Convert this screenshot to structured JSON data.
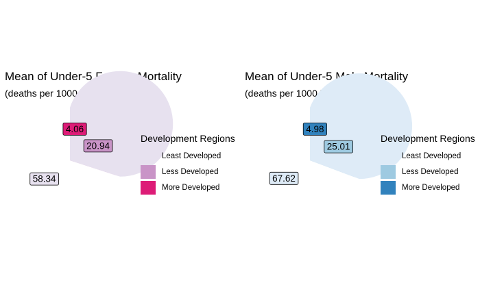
{
  "chart_data": [
    {
      "type": "pie",
      "title": "Mean of Under-5 Female Mortality",
      "subtitle": "(deaths per 1000 live births)",
      "legend_title": "Development Regions",
      "legend_position": "right",
      "categories": [
        "Least Developed",
        "Less Developed",
        "More Developed"
      ],
      "values": [
        58.34,
        20.94,
        4.06
      ],
      "labels": [
        "58.34",
        "20.94",
        "4.06"
      ],
      "colors": [
        "#e7e1ef",
        "#c994c7",
        "#dd1c77"
      ]
    },
    {
      "type": "pie",
      "title": "Mean of Under-5 Male Mortality",
      "subtitle": "(deaths per 1000 live births)",
      "legend_title": "Development Regions",
      "legend_position": "right",
      "categories": [
        "Least Developed",
        "Less Developed",
        "More Developed"
      ],
      "values": [
        67.62,
        25.01,
        4.98
      ],
      "labels": [
        "67.62",
        "25.01",
        "4.98"
      ],
      "colors": [
        "#deebf7",
        "#9ecae1",
        "#3182bd"
      ]
    }
  ]
}
